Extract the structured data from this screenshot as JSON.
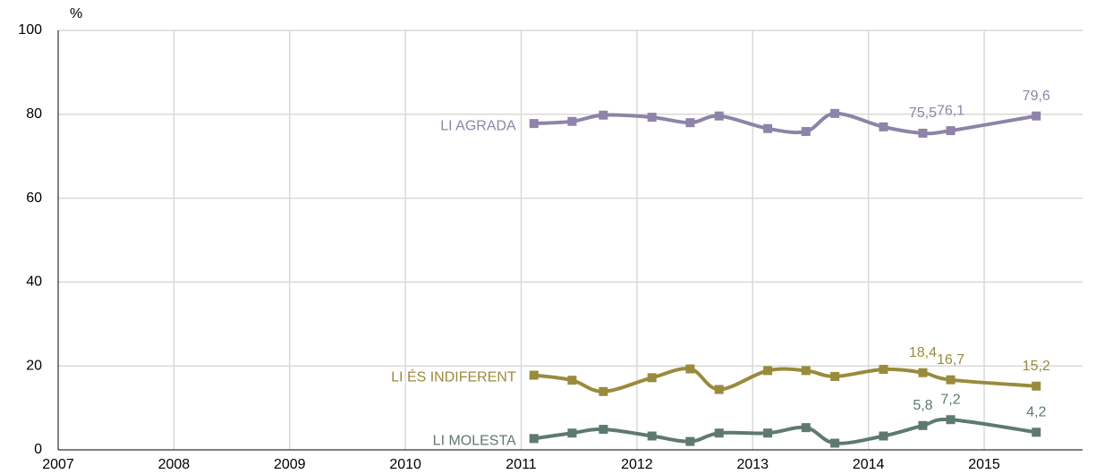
{
  "chart_data": {
    "type": "line",
    "y_unit": "%",
    "x": [
      2011.11,
      2011.44,
      2011.71,
      2012.13,
      2012.46,
      2012.71,
      2013.13,
      2013.46,
      2013.71,
      2014.13,
      2014.47,
      2014.71,
      2015.45
    ],
    "series": [
      {
        "name": "LI AGRADA",
        "color": "#8e83a8",
        "values": [
          77.8,
          78.3,
          79.8,
          79.3,
          78.0,
          79.6,
          76.6,
          75.9,
          80.2,
          77.0,
          75.5,
          76.1,
          79.6
        ],
        "value_labels": [
          null,
          null,
          null,
          null,
          null,
          null,
          null,
          null,
          null,
          null,
          "75,5",
          "76,1",
          "79,6"
        ]
      },
      {
        "name": "LI ÉS INDIFERENT",
        "color": "#9a8a3c",
        "values": [
          17.8,
          16.6,
          13.9,
          17.2,
          19.3,
          14.4,
          18.9,
          18.9,
          17.5,
          19.2,
          18.4,
          16.7,
          15.2
        ],
        "value_labels": [
          null,
          null,
          null,
          null,
          null,
          null,
          null,
          null,
          null,
          null,
          "18,4",
          "16,7",
          "15,2"
        ]
      },
      {
        "name": "LI MOLESTA",
        "color": "#5e7a6e",
        "values": [
          2.7,
          4.0,
          4.9,
          3.3,
          2.0,
          4.0,
          4.0,
          5.3,
          1.6,
          3.3,
          5.8,
          7.2,
          4.2
        ],
        "value_labels": [
          null,
          null,
          null,
          null,
          null,
          null,
          null,
          null,
          null,
          null,
          "5,8",
          "7,2",
          "4,2"
        ]
      }
    ],
    "xlim": [
      2007,
      2015.85
    ],
    "xticks": [
      2007,
      2008,
      2009,
      2010,
      2011,
      2012,
      2013,
      2014,
      2015
    ],
    "ylim": [
      0,
      100
    ],
    "yticks": [
      0,
      20,
      40,
      60,
      80,
      100
    ],
    "grid": true
  }
}
